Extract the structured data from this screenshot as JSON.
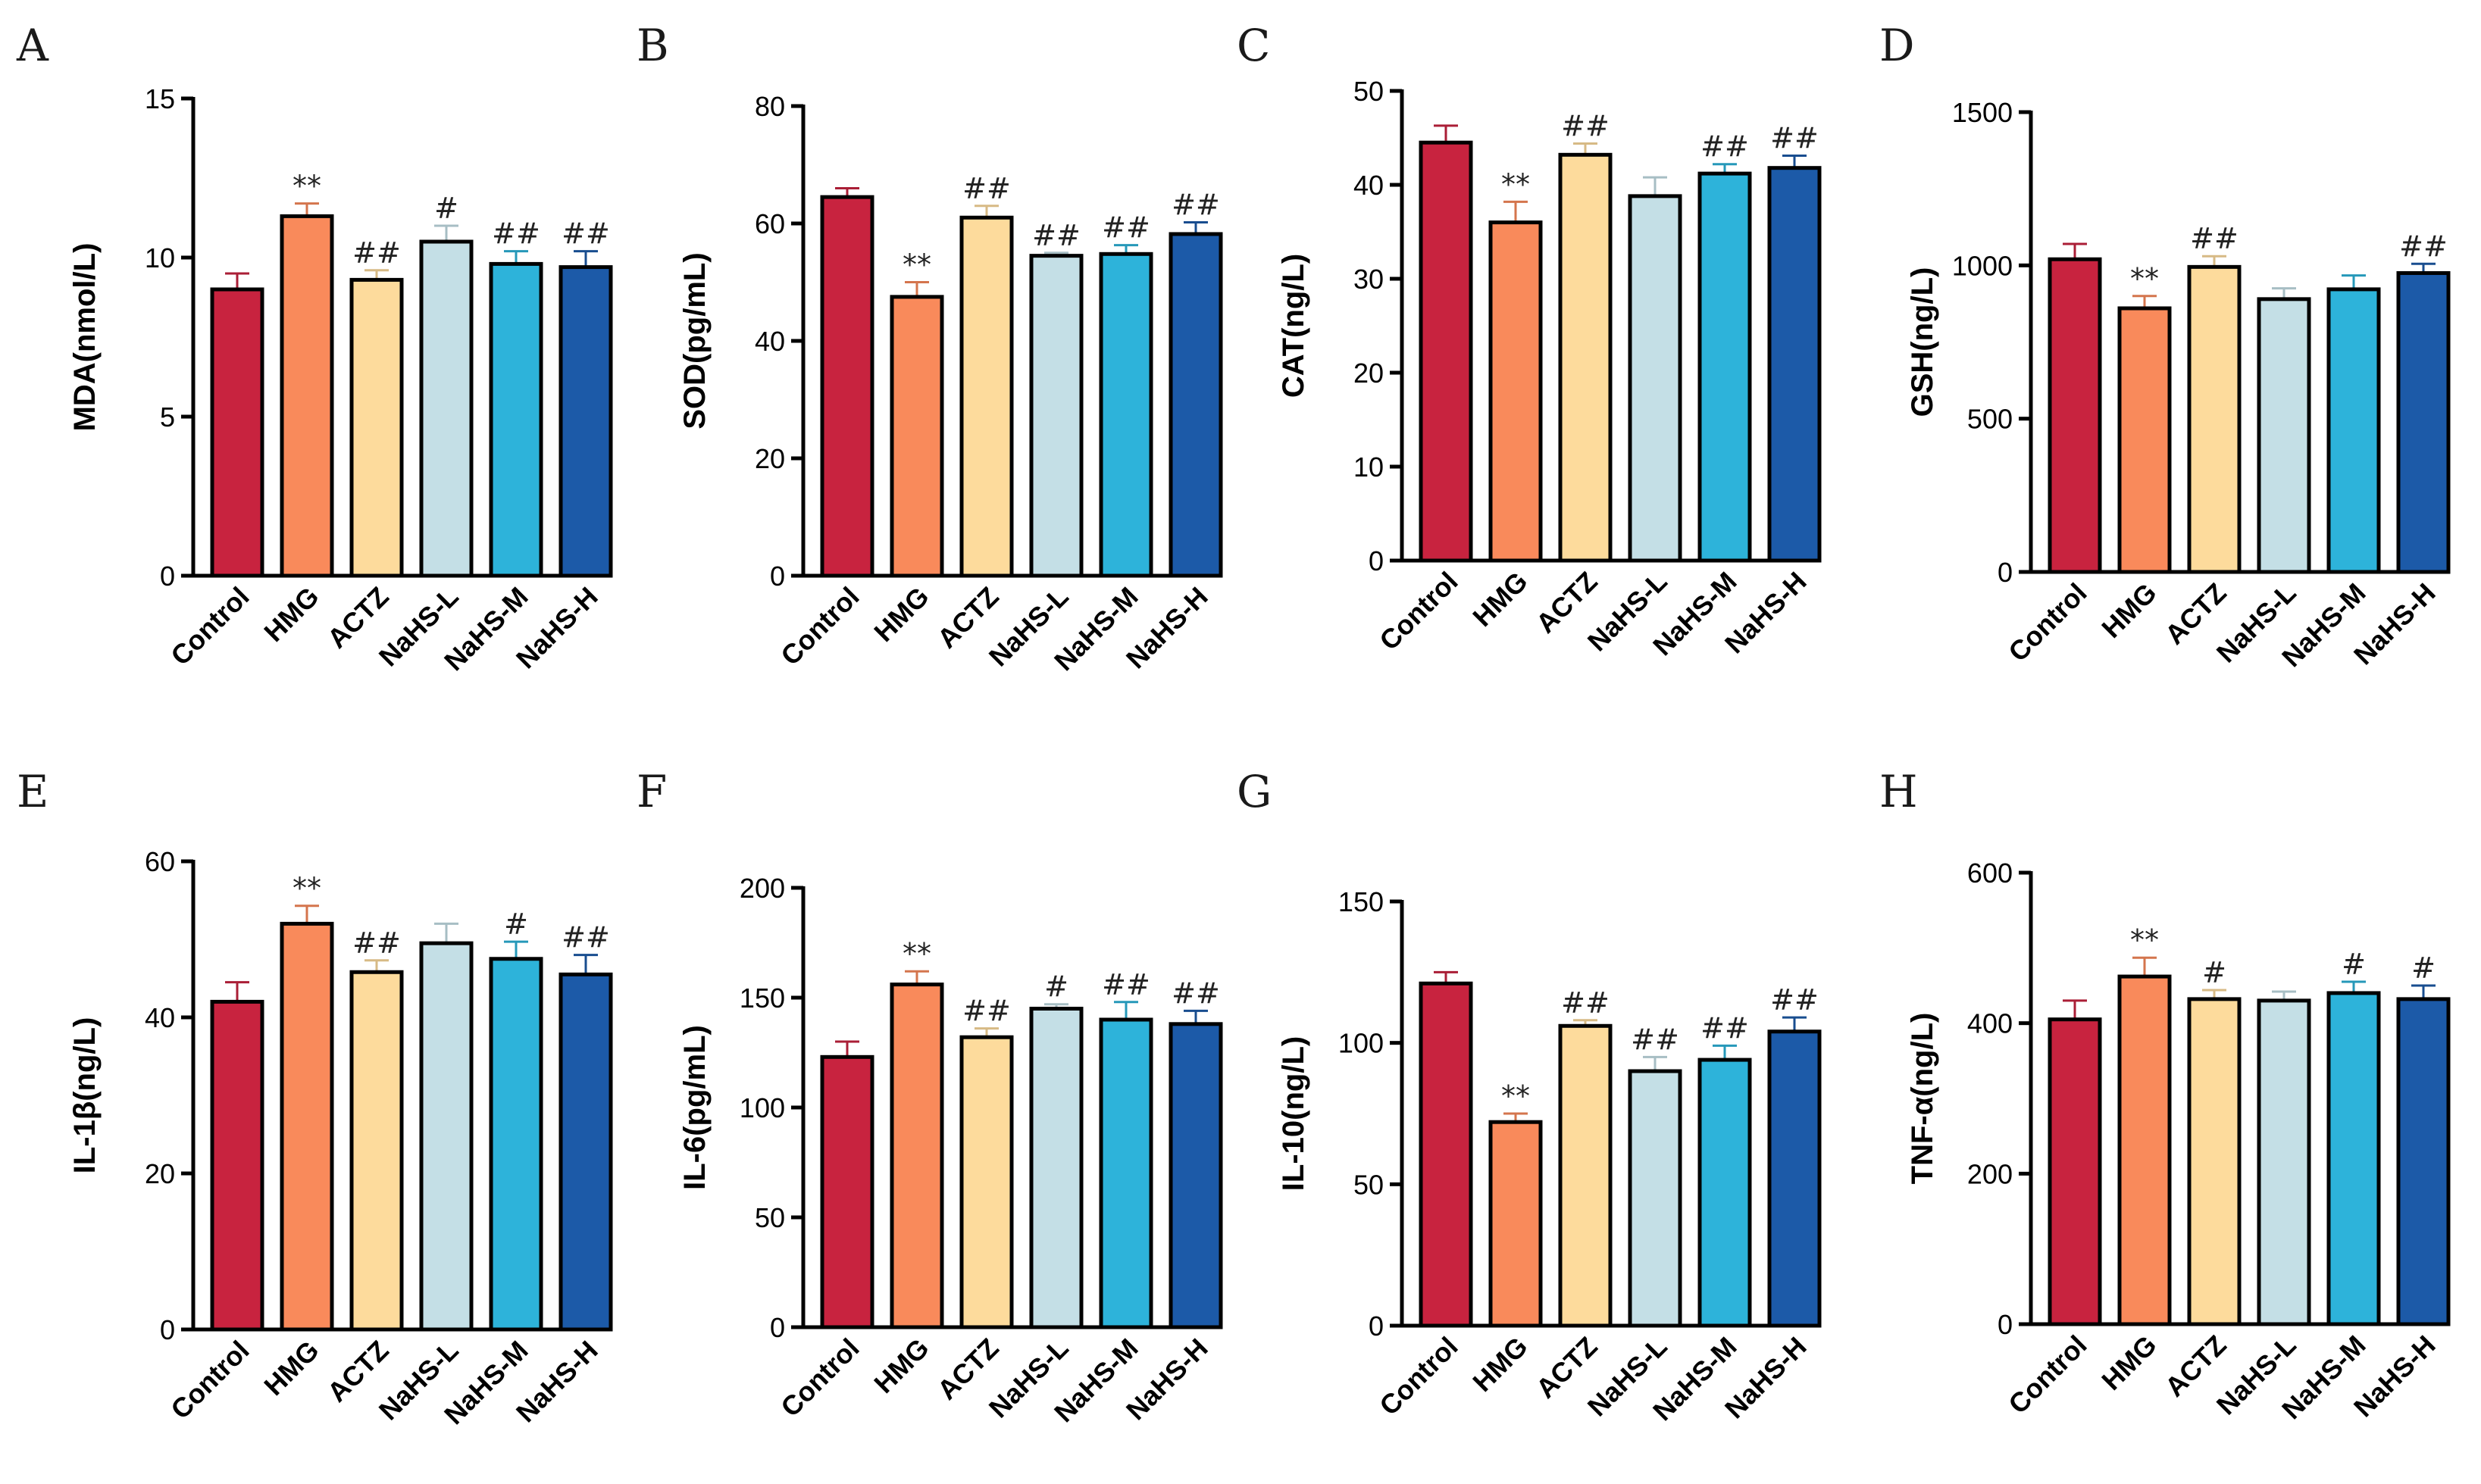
{
  "colors": {
    "Control": "#c8233f",
    "HMG": "#f98a5b",
    "ACTZ": "#fddb9c",
    "NaHS-L": "#c4dfe6",
    "NaHS-M": "#2db3da",
    "NaHS-H": "#1c5aa8"
  },
  "chart_data": [
    {
      "panel": "A",
      "type": "bar",
      "ylabel": "MDA(nmol/L)",
      "ylim": [
        0,
        15
      ],
      "ticks": [
        0,
        5,
        10,
        15
      ],
      "categories": [
        "Control",
        "HMG",
        "ACTZ",
        "NaHS-L",
        "NaHS-M",
        "NaHS-H"
      ],
      "values": [
        9.0,
        11.3,
        9.3,
        10.5,
        9.8,
        9.7
      ],
      "errors": [
        0.5,
        0.4,
        0.3,
        0.5,
        0.4,
        0.5
      ],
      "significance": [
        "",
        "**",
        "##",
        "#",
        "##",
        "##"
      ]
    },
    {
      "panel": "B",
      "type": "bar",
      "ylabel": "SOD(pg/mL)",
      "ylim": [
        0,
        80
      ],
      "ticks": [
        0,
        20,
        40,
        60,
        80
      ],
      "categories": [
        "Control",
        "HMG",
        "ACTZ",
        "NaHS-L",
        "NaHS-M",
        "NaHS-H"
      ],
      "values": [
        64.5,
        47.5,
        61.0,
        54.5,
        54.8,
        58.2
      ],
      "errors": [
        1.5,
        2.5,
        2.0,
        0.5,
        1.5,
        2.0
      ],
      "significance": [
        "",
        "**",
        "##",
        "##",
        "##",
        "##"
      ]
    },
    {
      "panel": "C",
      "type": "bar",
      "ylabel": "CAT(ng/L)",
      "ylim": [
        0,
        50
      ],
      "ticks": [
        0,
        10,
        20,
        30,
        40,
        50
      ],
      "categories": [
        "Control",
        "HMG",
        "ACTZ",
        "NaHS-L",
        "NaHS-M",
        "NaHS-H"
      ],
      "values": [
        44.5,
        36.0,
        43.2,
        38.8,
        41.2,
        41.8
      ],
      "errors": [
        1.8,
        2.2,
        1.2,
        2.0,
        1.0,
        1.3
      ],
      "significance": [
        "",
        "**",
        "##",
        "",
        "##",
        "##"
      ]
    },
    {
      "panel": "D",
      "type": "bar",
      "ylabel": "GSH(ng/L)",
      "ylim": [
        0,
        1500
      ],
      "ticks": [
        0,
        500,
        1000,
        1500
      ],
      "categories": [
        "Control",
        "HMG",
        "ACTZ",
        "NaHS-L",
        "NaHS-M",
        "NaHS-H"
      ],
      "values": [
        1020,
        860,
        995,
        890,
        922,
        975
      ],
      "errors": [
        50,
        40,
        35,
        35,
        45,
        30
      ],
      "significance": [
        "",
        "**",
        "##",
        "",
        "",
        "##"
      ]
    },
    {
      "panel": "E",
      "type": "bar",
      "ylabel": "IL-1β(ng/L)",
      "ylim": [
        0,
        60
      ],
      "ticks": [
        0,
        20,
        40,
        60
      ],
      "categories": [
        "Control",
        "HMG",
        "ACTZ",
        "NaHS-L",
        "NaHS-M",
        "NaHS-H"
      ],
      "values": [
        42.0,
        52.0,
        45.8,
        49.5,
        47.5,
        45.5
      ],
      "errors": [
        2.5,
        2.3,
        1.5,
        2.5,
        2.2,
        2.5
      ],
      "significance": [
        "",
        "**",
        "##",
        "",
        "#",
        "##"
      ]
    },
    {
      "panel": "F",
      "type": "bar",
      "ylabel": "IL-6(pg/mL)",
      "ylim": [
        0,
        200
      ],
      "ticks": [
        0,
        50,
        100,
        150,
        200
      ],
      "categories": [
        "Control",
        "HMG",
        "ACTZ",
        "NaHS-L",
        "NaHS-M",
        "NaHS-H"
      ],
      "values": [
        123,
        156,
        132,
        145,
        140,
        138
      ],
      "errors": [
        7,
        6,
        4,
        2,
        8,
        6
      ],
      "significance": [
        "",
        "**",
        "##",
        "#",
        "##",
        "##"
      ]
    },
    {
      "panel": "G",
      "type": "bar",
      "ylabel": "IL-10(ng/L)",
      "ylim": [
        0,
        150
      ],
      "ticks": [
        0,
        50,
        100,
        150
      ],
      "categories": [
        "Control",
        "HMG",
        "ACTZ",
        "NaHS-L",
        "NaHS-M",
        "NaHS-H"
      ],
      "values": [
        121,
        72,
        106,
        90,
        94,
        104
      ],
      "errors": [
        4,
        3,
        2,
        5,
        5,
        5
      ],
      "significance": [
        "",
        "**",
        "##",
        "##",
        "##",
        "##"
      ]
    },
    {
      "panel": "H",
      "type": "bar",
      "ylabel": "TNF-α(ng/L)",
      "ylim": [
        0,
        600
      ],
      "ticks": [
        0,
        200,
        400,
        600
      ],
      "categories": [
        "Control",
        "HMG",
        "ACTZ",
        "NaHS-L",
        "NaHS-M",
        "NaHS-H"
      ],
      "values": [
        405,
        462,
        432,
        430,
        440,
        432
      ],
      "errors": [
        25,
        25,
        12,
        12,
        15,
        18
      ],
      "significance": [
        "",
        "**",
        "#",
        "",
        "#",
        "#"
      ]
    }
  ]
}
